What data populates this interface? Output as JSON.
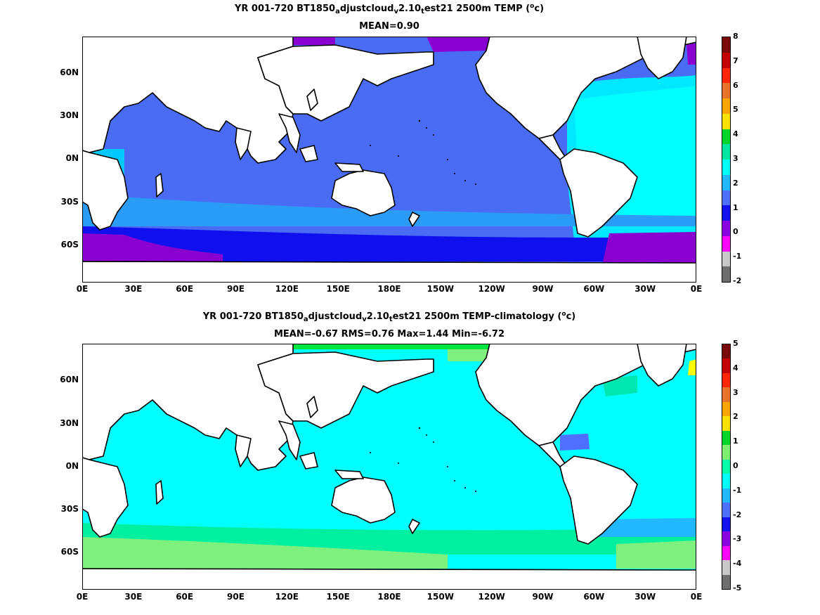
{
  "panels": [
    {
      "title_parts": [
        "YR 001-720 BT1850",
        "a",
        "djustcloud",
        "v",
        "2.10",
        "t",
        "est21 2500m TEMP (",
        "o",
        "c)"
      ],
      "subtitle": "MEAN=0.90",
      "map_theme": "absolute-temperature",
      "colorbar": {
        "labels": [
          "8",
          "7",
          "6",
          "5",
          "4",
          "3",
          "2",
          "1",
          "0",
          "-1",
          "-2"
        ],
        "colors": [
          "#7a0a0a",
          "#c40000",
          "#ff2600",
          "#e8732a",
          "#ffa400",
          "#ffe200",
          "#00d62a",
          "#00e6a0",
          "#00ffff",
          "#22b8ff",
          "#4f6fff",
          "#1212ee",
          "#8a00e0",
          "#ff00ff",
          "#c8c8c8",
          "#6e6e6e"
        ]
      }
    },
    {
      "title_parts": [
        "YR 001-720 BT1850",
        "a",
        "djustcloud",
        "v",
        "2.10",
        "t",
        "est21 2500m TEMP-climatology (",
        "o",
        "c)"
      ],
      "subtitle": "MEAN=-0.67   RMS=0.76   Max=1.44   Min=-6.72",
      "map_theme": "anomaly",
      "colorbar": {
        "labels": [
          "5",
          "4",
          "3",
          "2",
          "1",
          "0",
          "-1",
          "-2",
          "-3",
          "-4",
          "-5"
        ],
        "colors": [
          "#7a0a0a",
          "#c40000",
          "#ff2600",
          "#e8732a",
          "#ffa400",
          "#ffe200",
          "#00d62a",
          "#80ee70",
          "#00ffa8",
          "#00ffff",
          "#22b8ff",
          "#4f6fff",
          "#1212ee",
          "#8a00e0",
          "#ff00ff",
          "#c8c8c8",
          "#6e6e6e"
        ]
      }
    }
  ],
  "x_ticks": [
    "0E",
    "30E",
    "60E",
    "90E",
    "120E",
    "150E",
    "180E",
    "150W",
    "120W",
    "90W",
    "60W",
    "30W",
    "0E"
  ],
  "y_ticks": [
    "60N",
    "30N",
    "0N",
    "30S",
    "60S"
  ],
  "colors": {
    "land": "#ffffff",
    "coast": "#000000"
  }
}
